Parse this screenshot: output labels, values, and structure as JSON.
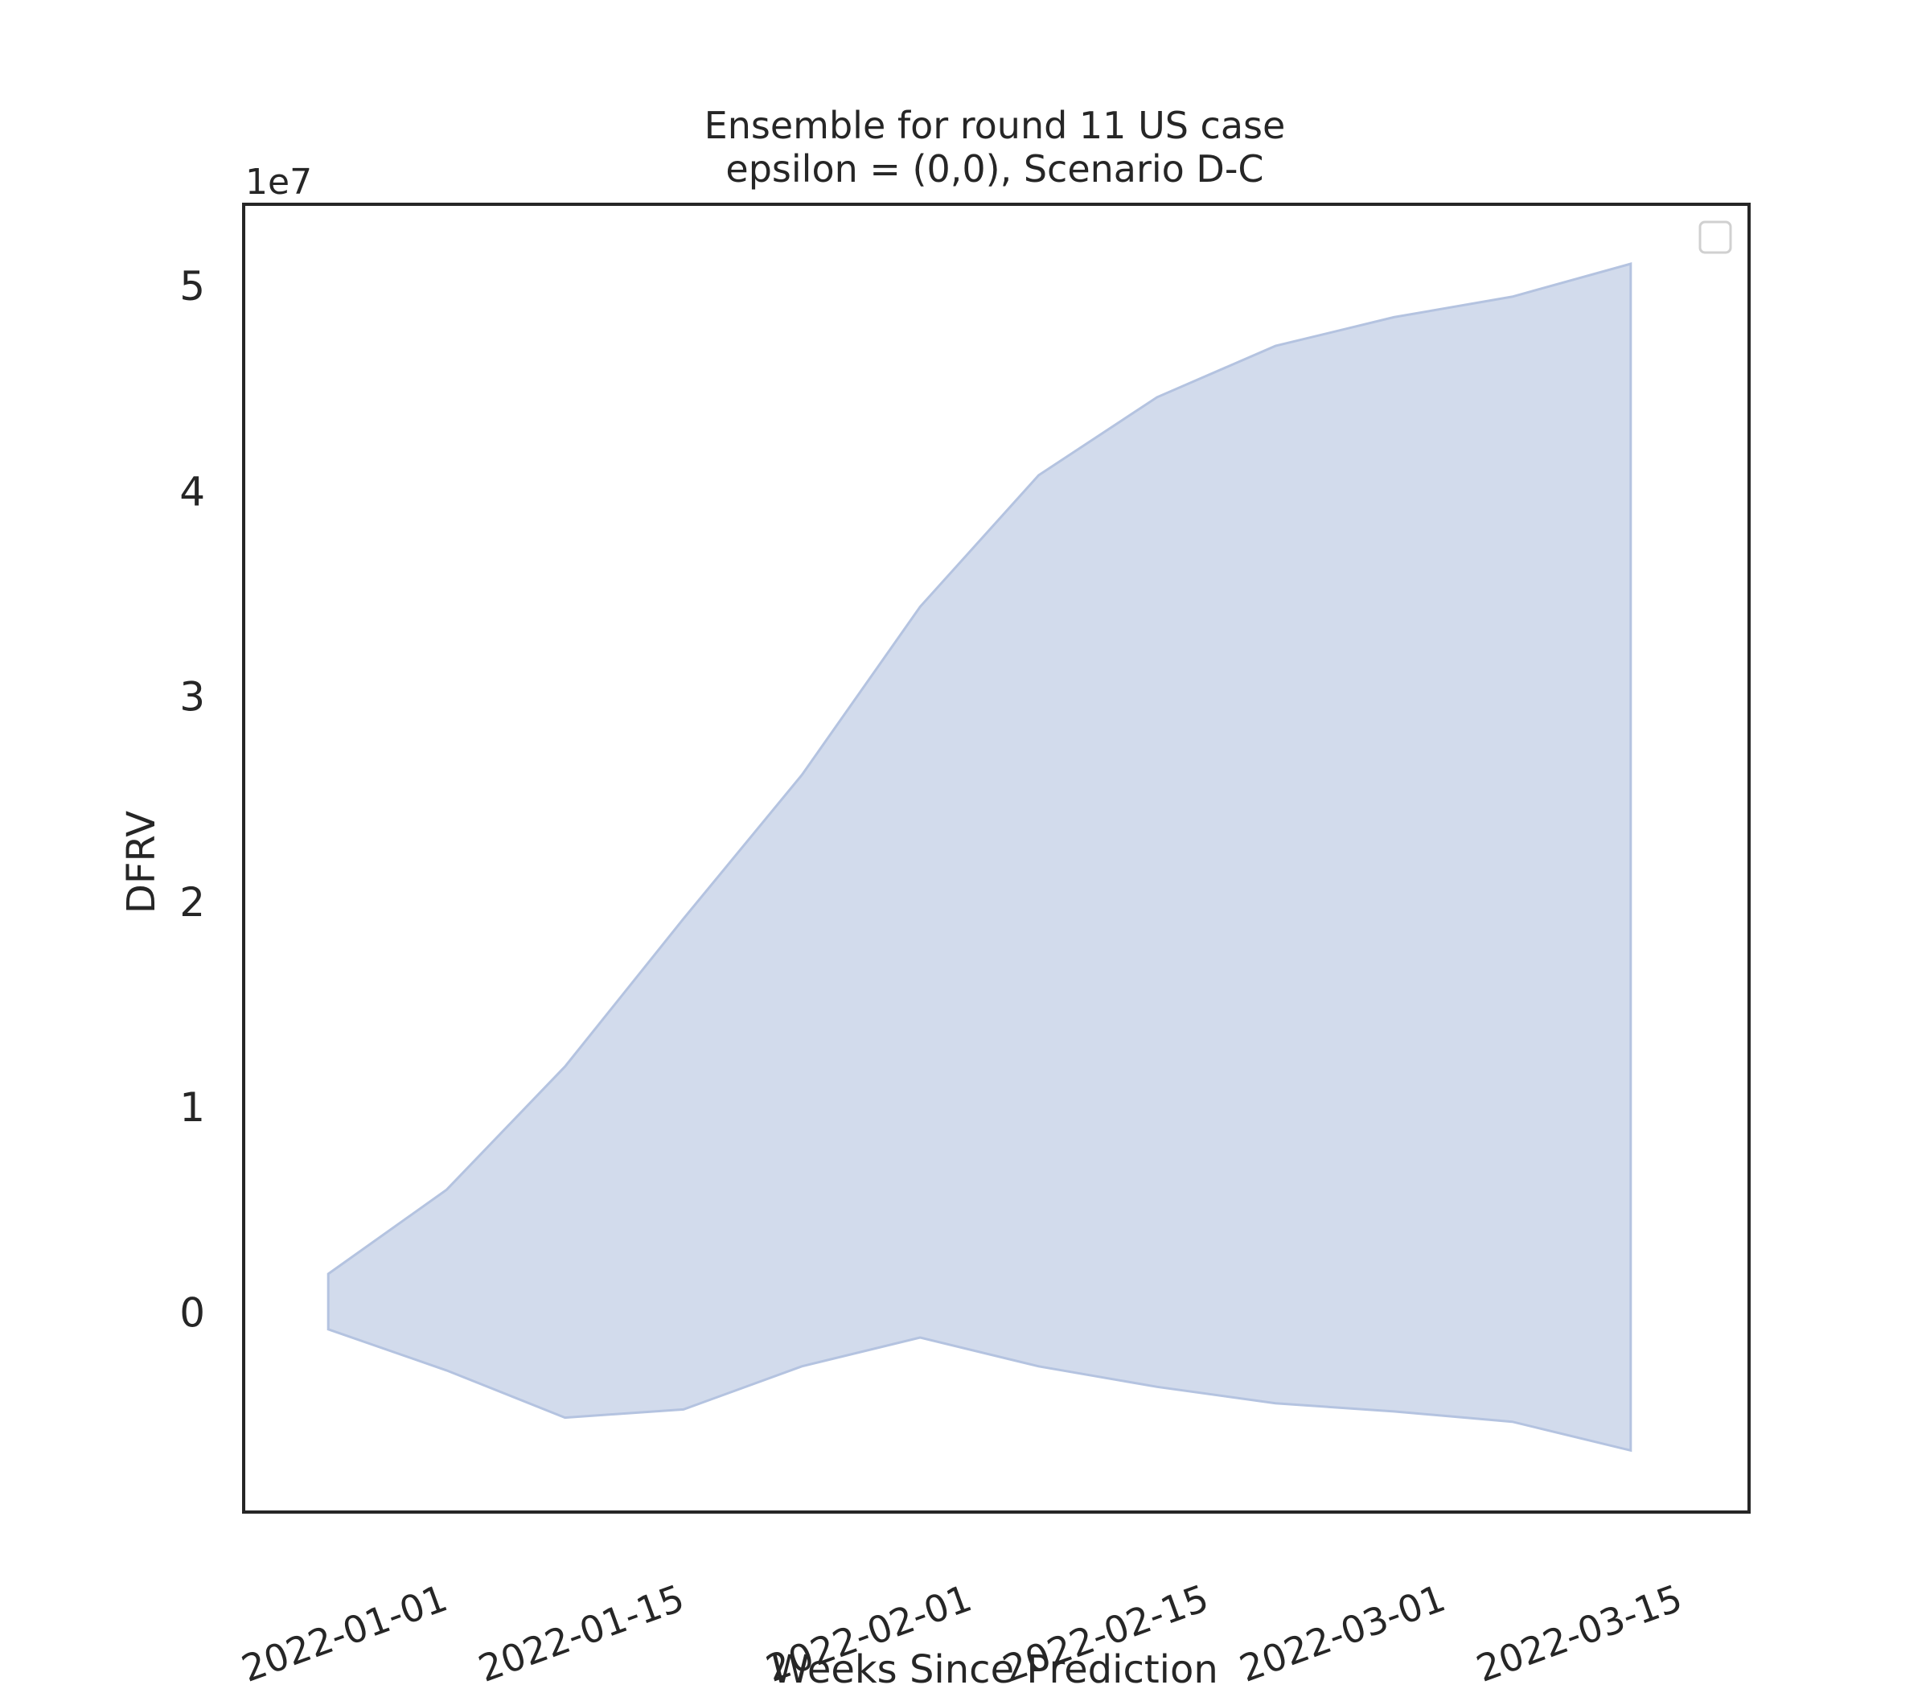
{
  "chart_data": {
    "type": "area",
    "title": "Ensemble for round 11 US case\nepsilon = (0,0), Scenario D-C",
    "title_lines": [
      "Ensemble for round 11 US case",
      "epsilon = (0,0), Scenario D-C"
    ],
    "xlabel": "Weeks Since Prediction",
    "ylabel": "DFRV",
    "y_offset_label": "1e7",
    "x_tick_labels": [
      "2022-01-01",
      "2022-01-15",
      "2022-02-01",
      "2022-02-15",
      "2022-03-01",
      "2022-03-15"
    ],
    "x_ticks": [
      "2022-01-01",
      "2022-01-15",
      "2022-02-01",
      "2022-02-15",
      "2022-03-01",
      "2022-03-15"
    ],
    "y_tick_labels": [
      "0",
      "1",
      "2",
      "3",
      "4",
      "5"
    ],
    "y_ticks": [
      0,
      10000000,
      20000000,
      30000000,
      40000000,
      50000000
    ],
    "xlim": [
      "2021-12-20",
      "2022-03-19"
    ],
    "ylim": [
      -9700000,
      54000000
    ],
    "grid": false,
    "legend": "top-right (empty)",
    "fill_color": "#b4c3e0",
    "series": [
      {
        "x": [
          "2021-12-25",
          "2022-01-01",
          "2022-01-08",
          "2022-01-15",
          "2022-01-22",
          "2022-01-29",
          "2022-02-05",
          "2022-02-12",
          "2022-02-19",
          "2022-02-26",
          "2022-03-05",
          "2022-03-12"
        ],
        "upper": [
          1900000,
          6000000,
          12000000,
          19200000,
          26200000,
          34400000,
          40800000,
          44600000,
          47100000,
          48500000,
          49500000,
          51100000
        ],
        "lower": [
          -800000,
          -2800000,
          -5100000,
          -4700000,
          -2600000,
          -1200000,
          -2600000,
          -3600000,
          -4400000,
          -4800000,
          -5300000,
          -6700000
        ]
      }
    ]
  }
}
